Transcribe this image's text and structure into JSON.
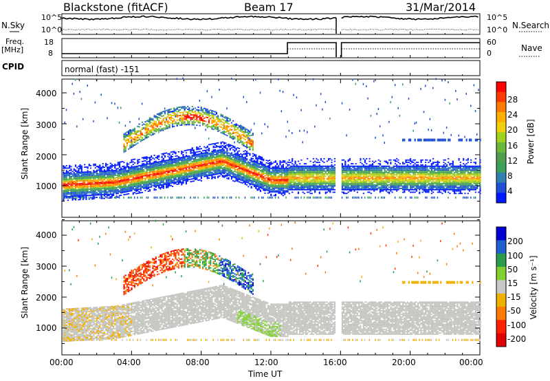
{
  "header": {
    "station": "Blackstone (fitACF)",
    "beam": "Beam 17",
    "date": "31/Mar/2014"
  },
  "top_panels": {
    "nsky_label": "N.Sky",
    "nsky_ticks": [
      "10^5",
      "10^0"
    ],
    "nsearch_label": "N.Search",
    "nsearch_ticks": [
      "10^5",
      "10^0"
    ],
    "freq_label": "Freq.",
    "freq_unit": "[MHz]",
    "freq_ticks": [
      "18",
      "8"
    ],
    "nave_label": "Nave",
    "nave_ticks": [
      "60",
      "0"
    ],
    "cpid_label": "CPID",
    "cpid_value": "normal (fast) -151"
  },
  "axes": {
    "ylabel": "Slant Range [km]",
    "y_ticks": [
      "4000",
      "3000",
      "2000",
      "1000"
    ],
    "x_ticks": [
      "00:00",
      "04:00",
      "08:00",
      "12:00",
      "16:00",
      "20:00",
      "00:00"
    ],
    "xlabel": "Time UT"
  },
  "chart_data": [
    {
      "type": "heatmap",
      "panel": "power",
      "x_range_hours": [
        0,
        24
      ],
      "ylim": [
        600,
        4500
      ],
      "y_ticks": [
        4000,
        3000,
        2000,
        1000
      ],
      "colorbar": {
        "label": "Power [dB]",
        "ticks": [
          28,
          24,
          20,
          16,
          12,
          8,
          4
        ],
        "colors": [
          "#0018ff",
          "#1f4fd6",
          "#2f7fb0",
          "#3aa05a",
          "#4f9e4f",
          "#6cb83a",
          "#a0d020",
          "#f0d010",
          "#ffb000",
          "#ff7a00",
          "#ff3a00",
          "#ff0000"
        ]
      },
      "features": [
        {
          "desc": "main band",
          "x_hours": [
            0,
            13
          ],
          "range_km": [
            850,
            1700
          ],
          "peak_db": 28
        },
        {
          "desc": "main band after 13 UT",
          "x_hours": [
            13,
            24
          ],
          "range_km": [
            1000,
            1600
          ],
          "peak_db": 24
        },
        {
          "desc": "upper band arc",
          "x_hours": [
            4,
            11
          ],
          "range_km": [
            2300,
            3800
          ],
          "peak_db": 26
        }
      ]
    },
    {
      "type": "heatmap",
      "panel": "velocity",
      "x_range_hours": [
        0,
        24
      ],
      "ylim": [
        600,
        4500
      ],
      "y_ticks": [
        4000,
        3000,
        2000,
        1000
      ],
      "colorbar": {
        "label": "Velocity [m s⁻¹]",
        "ticks": [
          200,
          100,
          50,
          15,
          -15,
          -50,
          -100,
          -200
        ],
        "colors": [
          "#0000d0",
          "#1f5fd0",
          "#2a9d4a",
          "#7fd030",
          "#c8c8c8",
          "#f0b000",
          "#ff7a00",
          "#ff2000",
          "#e00000"
        ]
      }
    }
  ],
  "colors": {
    "frame": "#000000",
    "ground_scatter": "#c4c4c0",
    "background": "#ffffff"
  }
}
